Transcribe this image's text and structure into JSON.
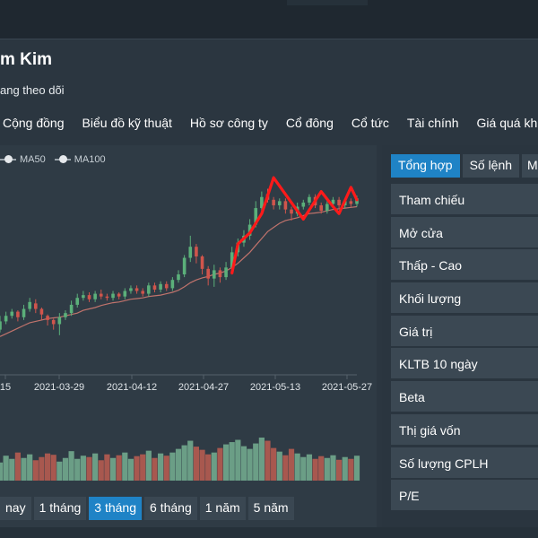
{
  "header": {
    "stock_name": "m Kim",
    "follow_status": "ang theo dõi"
  },
  "nav": {
    "items": [
      "Cộng đồng",
      "Biểu đồ kỹ thuật",
      "Hồ sơ công ty",
      "Cổ đông",
      "Cổ tức",
      "Tài chính",
      "Giá quá khứ"
    ]
  },
  "legend": {
    "items": [
      "MA50",
      "MA100"
    ]
  },
  "range_buttons": {
    "items": [
      "nay",
      "1 tháng",
      "3 tháng",
      "6 tháng",
      "1 năm",
      "5 năm"
    ],
    "active": "3 tháng"
  },
  "side_panel": {
    "tabs": [
      "Tổng hợp",
      "Số lệnh",
      "M"
    ],
    "active_tab": "Tổng hợp",
    "rows": [
      "Tham chiếu",
      "Mở cửa",
      "Thấp - Cao",
      "Khối lượng",
      "Giá trị",
      "KLTB 10 ngày",
      "Beta",
      "Thị giá vốn",
      "Số lượng CPLH",
      "P/E"
    ]
  },
  "colors": {
    "up": "#5bb07a",
    "down": "#d0554c",
    "ma_line": "#c0736c",
    "annotation": "#ff1a1a",
    "active_button": "#1f83c6"
  },
  "chart_data": {
    "type": "candlestick",
    "x_ticks": [
      "15",
      "2021-03-29",
      "2021-04-12",
      "2021-04-27",
      "2021-05-13",
      "2021-05-27"
    ],
    "candles": [
      {
        "open": 24.6,
        "close": 25.2,
        "low": 24.4,
        "high": 25.6
      },
      {
        "open": 25.2,
        "close": 25.6,
        "low": 25.0,
        "high": 25.9
      },
      {
        "open": 25.6,
        "close": 25.9,
        "low": 25.4,
        "high": 26.1
      },
      {
        "open": 25.9,
        "close": 25.5,
        "low": 25.2,
        "high": 26.0
      },
      {
        "open": 25.5,
        "close": 26.1,
        "low": 25.3,
        "high": 26.4
      },
      {
        "open": 26.1,
        "close": 26.6,
        "low": 25.9,
        "high": 26.9
      },
      {
        "open": 26.5,
        "close": 26.1,
        "low": 25.8,
        "high": 26.8
      },
      {
        "open": 26.1,
        "close": 25.7,
        "low": 25.3,
        "high": 26.2
      },
      {
        "open": 25.6,
        "close": 25.3,
        "low": 24.9,
        "high": 25.7
      },
      {
        "open": 25.3,
        "close": 25.0,
        "low": 24.6,
        "high": 25.4
      },
      {
        "open": 25.0,
        "close": 25.5,
        "low": 24.2,
        "high": 25.8
      },
      {
        "open": 25.5,
        "close": 25.8,
        "low": 25.3,
        "high": 26.0
      },
      {
        "open": 25.8,
        "close": 26.4,
        "low": 25.6,
        "high": 26.7
      },
      {
        "open": 26.4,
        "close": 26.9,
        "low": 26.2,
        "high": 27.2
      },
      {
        "open": 26.9,
        "close": 27.1,
        "low": 26.7,
        "high": 27.4
      },
      {
        "open": 27.1,
        "close": 26.8,
        "low": 26.6,
        "high": 27.3
      },
      {
        "open": 26.8,
        "close": 27.2,
        "low": 26.6,
        "high": 27.4
      },
      {
        "open": 27.2,
        "close": 27.0,
        "low": 26.8,
        "high": 27.5
      },
      {
        "open": 27.0,
        "close": 26.9,
        "low": 26.7,
        "high": 27.2
      },
      {
        "open": 26.9,
        "close": 27.2,
        "low": 26.7,
        "high": 27.4
      },
      {
        "open": 27.2,
        "close": 27.0,
        "low": 26.8,
        "high": 27.3
      },
      {
        "open": 27.0,
        "close": 27.4,
        "low": 26.8,
        "high": 27.6
      },
      {
        "open": 27.4,
        "close": 27.6,
        "low": 27.2,
        "high": 27.8
      },
      {
        "open": 27.6,
        "close": 27.4,
        "low": 27.2,
        "high": 27.8
      },
      {
        "open": 27.4,
        "close": 27.2,
        "low": 27.0,
        "high": 27.6
      },
      {
        "open": 27.2,
        "close": 27.8,
        "low": 27.0,
        "high": 28.0
      },
      {
        "open": 27.8,
        "close": 27.5,
        "low": 27.3,
        "high": 28.0
      },
      {
        "open": 27.5,
        "close": 27.9,
        "low": 27.3,
        "high": 28.1
      },
      {
        "open": 27.9,
        "close": 27.6,
        "low": 27.4,
        "high": 28.1
      },
      {
        "open": 27.6,
        "close": 28.2,
        "low": 27.4,
        "high": 28.4
      },
      {
        "open": 28.2,
        "close": 28.6,
        "low": 28.0,
        "high": 28.9
      },
      {
        "open": 28.6,
        "close": 29.8,
        "low": 28.4,
        "high": 30.0
      },
      {
        "open": 29.8,
        "close": 30.6,
        "low": 29.5,
        "high": 31.4
      },
      {
        "open": 30.6,
        "close": 29.9,
        "low": 29.4,
        "high": 30.8
      },
      {
        "open": 29.9,
        "close": 29.0,
        "low": 28.6,
        "high": 30.0
      },
      {
        "open": 29.0,
        "close": 28.3,
        "low": 27.8,
        "high": 29.2
      },
      {
        "open": 28.3,
        "close": 28.9,
        "low": 27.7,
        "high": 29.3
      },
      {
        "open": 28.9,
        "close": 28.4,
        "low": 28.0,
        "high": 29.1
      },
      {
        "open": 28.4,
        "close": 29.1,
        "low": 28.2,
        "high": 29.5
      },
      {
        "open": 29.1,
        "close": 30.2,
        "low": 28.8,
        "high": 30.6
      },
      {
        "open": 30.2,
        "close": 30.9,
        "low": 29.9,
        "high": 31.2
      },
      {
        "open": 30.9,
        "close": 31.4,
        "low": 30.6,
        "high": 31.8
      },
      {
        "open": 31.4,
        "close": 32.2,
        "low": 31.1,
        "high": 32.6
      },
      {
        "open": 32.2,
        "close": 33.4,
        "low": 32.0,
        "high": 33.9
      },
      {
        "open": 33.4,
        "close": 34.2,
        "low": 33.1,
        "high": 34.6
      },
      {
        "open": 34.4,
        "close": 34.0,
        "low": 33.8,
        "high": 34.8
      },
      {
        "open": 34.0,
        "close": 33.6,
        "low": 33.3,
        "high": 34.2
      },
      {
        "open": 33.6,
        "close": 33.9,
        "low": 33.3,
        "high": 34.1
      },
      {
        "open": 33.9,
        "close": 33.3,
        "low": 33.0,
        "high": 34.1
      },
      {
        "open": 33.3,
        "close": 33.0,
        "low": 32.5,
        "high": 33.5
      },
      {
        "open": 33.0,
        "close": 33.5,
        "low": 32.8,
        "high": 33.8
      },
      {
        "open": 33.5,
        "close": 33.8,
        "low": 33.3,
        "high": 34.0
      },
      {
        "open": 33.8,
        "close": 34.2,
        "low": 33.6,
        "high": 34.4
      },
      {
        "open": 34.2,
        "close": 33.6,
        "low": 33.4,
        "high": 34.4
      },
      {
        "open": 33.6,
        "close": 33.2,
        "low": 33.0,
        "high": 33.8
      },
      {
        "open": 33.2,
        "close": 33.7,
        "low": 33.0,
        "high": 33.9
      },
      {
        "open": 33.7,
        "close": 34.0,
        "low": 33.4,
        "high": 34.2
      },
      {
        "open": 34.0,
        "close": 33.6,
        "low": 33.4,
        "high": 34.2
      },
      {
        "open": 33.6,
        "close": 33.9,
        "low": 33.4,
        "high": 34.1
      },
      {
        "open": 33.9,
        "close": 33.7,
        "low": 33.5,
        "high": 34.1
      },
      {
        "open": 33.7,
        "close": 34.1,
        "low": 33.5,
        "high": 34.3
      }
    ],
    "ma_line": [
      24.1,
      24.3,
      24.5,
      24.7,
      24.9,
      25.1,
      25.2,
      25.3,
      25.4,
      25.45,
      25.5,
      25.6,
      25.7,
      25.8,
      26.0,
      26.1,
      26.2,
      26.35,
      26.45,
      26.55,
      26.6,
      26.7,
      26.8,
      26.85,
      26.9,
      27.0,
      27.05,
      27.1,
      27.2,
      27.3,
      27.45,
      27.7,
      28.0,
      28.2,
      28.35,
      28.45,
      28.6,
      28.7,
      28.85,
      29.1,
      29.4,
      29.8,
      30.2,
      30.7,
      31.2,
      31.7,
      32.0,
      32.3,
      32.5,
      32.6,
      32.7,
      32.85,
      33.0,
      33.05,
      33.1,
      33.2,
      33.3,
      33.35,
      33.4,
      33.45,
      33.5
    ],
    "volume": [
      40,
      55,
      48,
      62,
      50,
      58,
      45,
      52,
      60,
      57,
      42,
      50,
      65,
      48,
      55,
      52,
      60,
      45,
      58,
      50,
      56,
      62,
      48,
      54,
      58,
      66,
      50,
      60,
      55,
      62,
      70,
      78,
      88,
      75,
      68,
      58,
      62,
      72,
      80,
      85,
      90,
      76,
      70,
      82,
      95,
      88,
      72,
      64,
      56,
      70,
      60,
      52,
      58,
      48,
      54,
      50,
      56,
      46,
      52,
      48,
      55
    ],
    "annotation_path": [
      {
        "index": 39,
        "price": 28.7
      },
      {
        "index": 40,
        "price": 30.8
      },
      {
        "index": 42,
        "price": 31.6
      },
      {
        "index": 44,
        "price": 33.0
      },
      {
        "index": 46,
        "price": 35.6
      },
      {
        "index": 49,
        "price": 33.8
      },
      {
        "index": 51,
        "price": 32.6
      },
      {
        "index": 54,
        "price": 34.6
      },
      {
        "index": 56,
        "price": 33.5
      },
      {
        "index": 57,
        "price": 33.0
      },
      {
        "index": 59,
        "price": 34.9
      },
      {
        "index": 60,
        "price": 34.0
      }
    ]
  }
}
